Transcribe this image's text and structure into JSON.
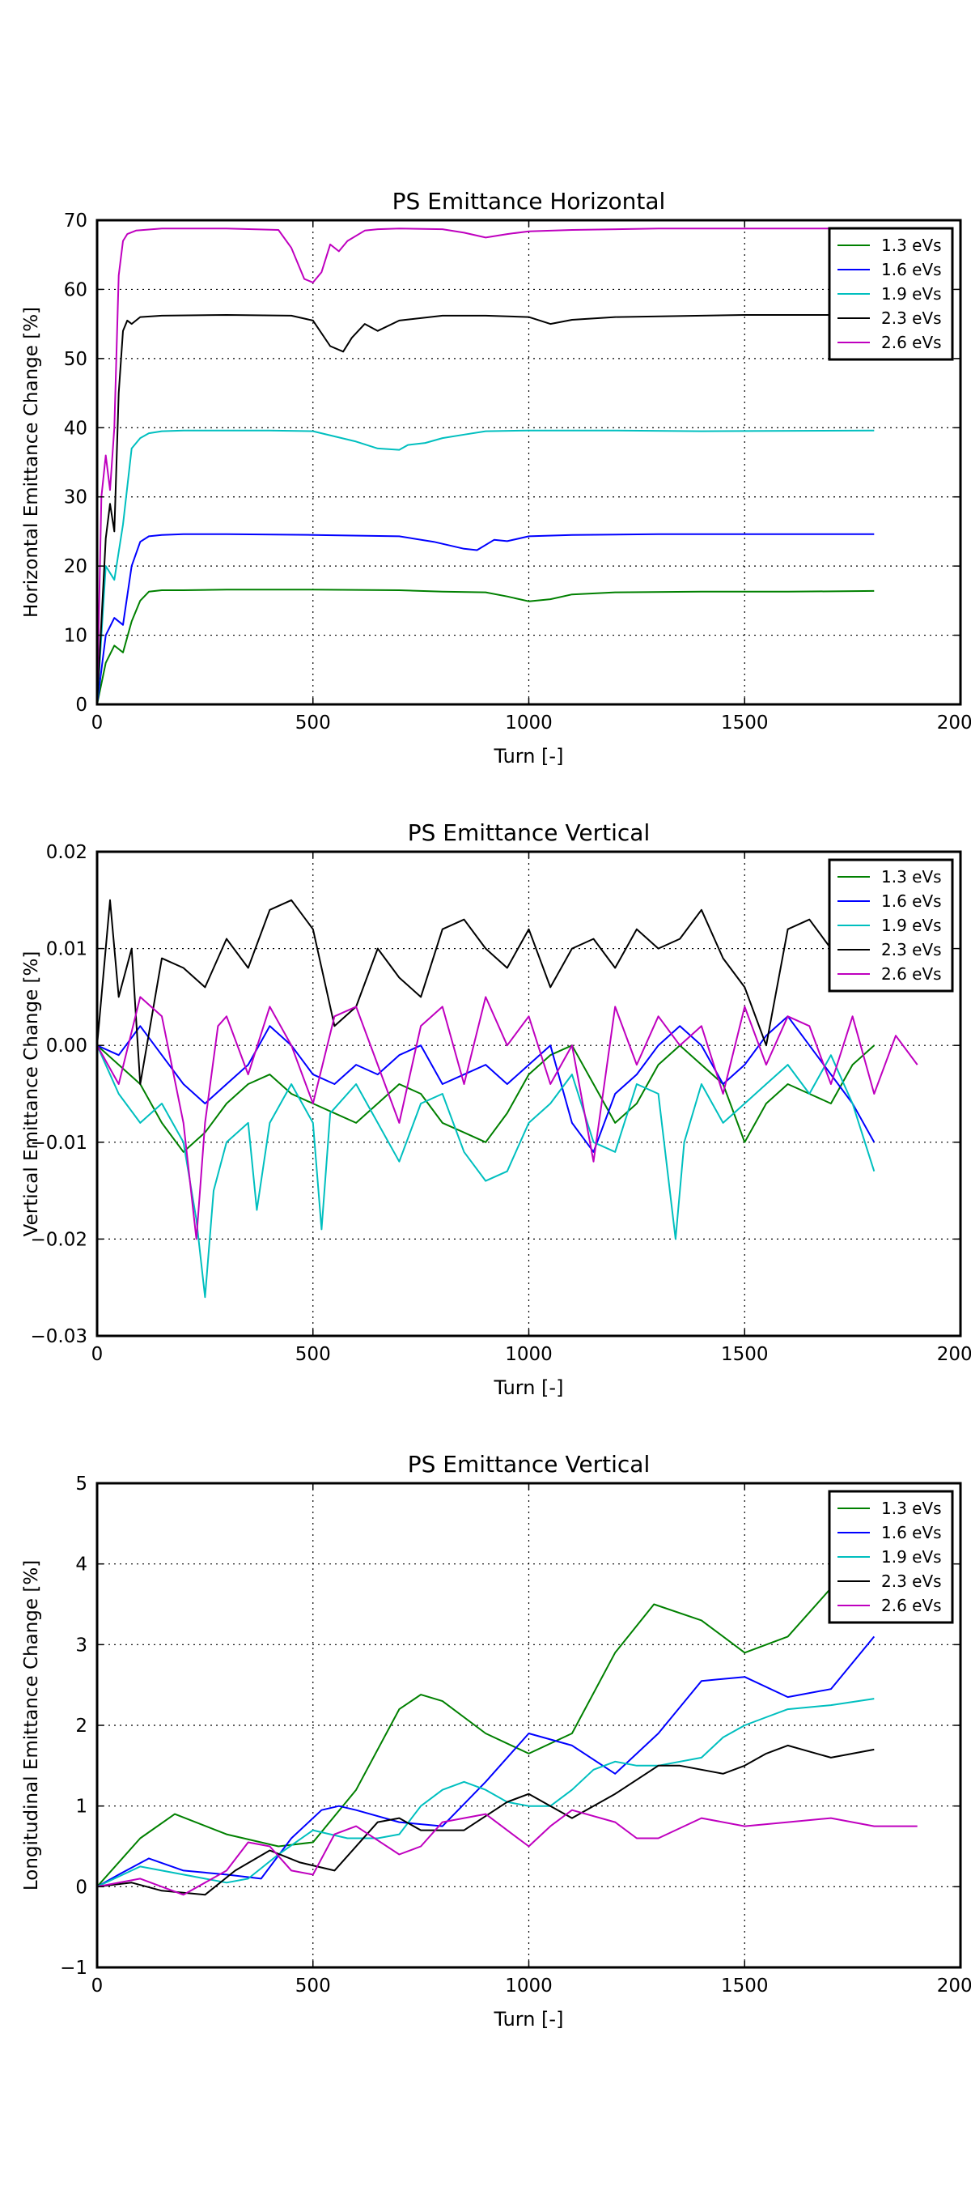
{
  "chart_data": [
    {
      "type": "line",
      "title": "PS Emittance Horizontal",
      "xlabel": "Turn [-]",
      "ylabel": "Horizontal Emittance Change [%]",
      "xlim": [
        0,
        2000
      ],
      "ylim": [
        0,
        70
      ],
      "xticks": [
        0,
        500,
        1000,
        1500,
        2000
      ],
      "yticks": [
        0,
        10,
        20,
        30,
        40,
        50,
        60,
        70
      ],
      "ytick_labels": [
        "0",
        "10",
        "20",
        "30",
        "40",
        "50",
        "60",
        "70"
      ],
      "grid": true,
      "legend": "top-right",
      "series": [
        {
          "name": "1.3 eVs",
          "color": "#008000",
          "x": [
            0,
            20,
            40,
            60,
            80,
            100,
            120,
            150,
            200,
            300,
            500,
            700,
            800,
            900,
            950,
            1000,
            1050,
            1100,
            1200,
            1400,
            1600,
            1800
          ],
          "y": [
            0,
            6,
            8.5,
            7.5,
            12,
            15,
            16.3,
            16.5,
            16.5,
            16.6,
            16.6,
            16.5,
            16.3,
            16.2,
            15.6,
            14.9,
            15.2,
            15.9,
            16.2,
            16.3,
            16.3,
            16.4
          ]
        },
        {
          "name": "1.6 eVs",
          "color": "#0000ff",
          "x": [
            0,
            20,
            40,
            60,
            80,
            100,
            120,
            150,
            200,
            300,
            500,
            700,
            780,
            850,
            880,
            920,
            950,
            1000,
            1100,
            1300,
            1500,
            1800
          ],
          "y": [
            0,
            10,
            12.5,
            11.5,
            20,
            23.5,
            24.3,
            24.5,
            24.6,
            24.6,
            24.5,
            24.3,
            23.5,
            22.5,
            22.3,
            23.8,
            23.6,
            24.3,
            24.5,
            24.6,
            24.6,
            24.6
          ]
        },
        {
          "name": "1.9 eVs",
          "color": "#00bfbf",
          "x": [
            0,
            20,
            40,
            60,
            80,
            100,
            120,
            150,
            200,
            400,
            500,
            600,
            650,
            700,
            720,
            760,
            800,
            850,
            900,
            1000,
            1200,
            1400,
            1800
          ],
          "y": [
            0,
            20,
            18,
            26,
            37,
            38.5,
            39.2,
            39.5,
            39.6,
            39.6,
            39.5,
            38,
            37,
            36.8,
            37.5,
            37.8,
            38.5,
            39,
            39.5,
            39.6,
            39.6,
            39.5,
            39.6
          ]
        },
        {
          "name": "2.3 eVs",
          "color": "#000000",
          "x": [
            0,
            20,
            30,
            40,
            50,
            60,
            70,
            80,
            100,
            150,
            300,
            450,
            500,
            540,
            570,
            590,
            620,
            650,
            700,
            800,
            900,
            1000,
            1050,
            1100,
            1200,
            1500,
            1800
          ],
          "y": [
            0,
            24,
            29,
            25,
            45,
            54,
            55.5,
            55,
            56,
            56.2,
            56.3,
            56.2,
            55.5,
            51.8,
            51,
            53,
            55,
            54,
            55.5,
            56.2,
            56.2,
            56,
            55,
            55.6,
            56,
            56.3,
            56.3
          ]
        },
        {
          "name": "2.6 eVs",
          "color": "#bf00bf",
          "x": [
            0,
            10,
            20,
            30,
            40,
            50,
            60,
            70,
            90,
            150,
            300,
            420,
            450,
            480,
            500,
            520,
            540,
            560,
            580,
            620,
            650,
            700,
            800,
            850,
            900,
            950,
            1000,
            1100,
            1300,
            1500,
            1800
          ],
          "y": [
            0,
            30,
            36,
            31,
            40,
            62,
            67,
            68,
            68.5,
            68.8,
            68.8,
            68.6,
            66,
            61.5,
            61,
            62.5,
            66.5,
            65.5,
            67,
            68.5,
            68.7,
            68.8,
            68.7,
            68.2,
            67.5,
            68,
            68.4,
            68.6,
            68.8,
            68.8,
            68.8
          ]
        }
      ]
    },
    {
      "type": "line",
      "title": "PS Emittance Vertical",
      "xlabel": "Turn [-]",
      "ylabel": "Vertical Emittance Change [%]",
      "xlim": [
        0,
        2000
      ],
      "ylim": [
        -0.03,
        0.02
      ],
      "xticks": [
        0,
        500,
        1000,
        1500,
        2000
      ],
      "yticks": [
        -0.03,
        -0.02,
        -0.01,
        0.0,
        0.01,
        0.02
      ],
      "ytick_labels": [
        "−0.03",
        "−0.02",
        "−0.01",
        "0.00",
        "0.01",
        "0.02"
      ],
      "grid": true,
      "legend": "top-right",
      "series": [
        {
          "name": "1.3 eVs",
          "color": "#008000",
          "x": [
            0,
            50,
            100,
            150,
            200,
            250,
            300,
            350,
            400,
            450,
            500,
            550,
            600,
            650,
            700,
            750,
            800,
            850,
            900,
            950,
            1000,
            1050,
            1100,
            1150,
            1200,
            1250,
            1300,
            1350,
            1400,
            1450,
            1500,
            1550,
            1600,
            1650,
            1700,
            1750,
            1800
          ],
          "y": [
            0,
            -0.002,
            -0.004,
            -0.008,
            -0.011,
            -0.009,
            -0.006,
            -0.004,
            -0.003,
            -0.005,
            -0.006,
            -0.007,
            -0.008,
            -0.006,
            -0.004,
            -0.005,
            -0.008,
            -0.009,
            -0.01,
            -0.007,
            -0.003,
            -0.001,
            0.0,
            -0.004,
            -0.008,
            -0.006,
            -0.002,
            0.0,
            -0.002,
            -0.004,
            -0.01,
            -0.006,
            -0.004,
            -0.005,
            -0.006,
            -0.002,
            0.0
          ]
        },
        {
          "name": "1.6 eVs",
          "color": "#0000ff",
          "x": [
            0,
            50,
            100,
            150,
            200,
            250,
            300,
            350,
            400,
            450,
            500,
            550,
            600,
            650,
            700,
            750,
            800,
            850,
            900,
            950,
            1000,
            1050,
            1100,
            1150,
            1200,
            1250,
            1300,
            1350,
            1400,
            1450,
            1500,
            1550,
            1600,
            1650,
            1700,
            1750,
            1800
          ],
          "y": [
            0,
            -0.001,
            0.002,
            -0.001,
            -0.004,
            -0.006,
            -0.004,
            -0.002,
            0.002,
            0.0,
            -0.003,
            -0.004,
            -0.002,
            -0.003,
            -0.001,
            0.0,
            -0.004,
            -0.003,
            -0.002,
            -0.004,
            -0.002,
            0.0,
            -0.008,
            -0.011,
            -0.005,
            -0.003,
            0.0,
            0.002,
            0.0,
            -0.004,
            -0.002,
            0.001,
            0.003,
            0.0,
            -0.003,
            -0.006,
            -0.01
          ]
        },
        {
          "name": "1.9 eVs",
          "color": "#00bfbf",
          "x": [
            0,
            50,
            100,
            150,
            200,
            230,
            250,
            270,
            300,
            350,
            370,
            400,
            450,
            500,
            520,
            540,
            600,
            650,
            700,
            750,
            800,
            850,
            900,
            950,
            1000,
            1050,
            1100,
            1150,
            1200,
            1250,
            1300,
            1340,
            1360,
            1400,
            1450,
            1500,
            1550,
            1600,
            1650,
            1700,
            1750,
            1800
          ],
          "y": [
            0,
            -0.005,
            -0.008,
            -0.006,
            -0.01,
            -0.018,
            -0.026,
            -0.015,
            -0.01,
            -0.008,
            -0.017,
            -0.008,
            -0.004,
            -0.008,
            -0.019,
            -0.007,
            -0.004,
            -0.008,
            -0.012,
            -0.006,
            -0.005,
            -0.011,
            -0.014,
            -0.013,
            -0.008,
            -0.006,
            -0.003,
            -0.01,
            -0.011,
            -0.004,
            -0.005,
            -0.02,
            -0.01,
            -0.004,
            -0.008,
            -0.006,
            -0.004,
            -0.002,
            -0.005,
            -0.001,
            -0.006,
            -0.013
          ]
        },
        {
          "name": "2.3 eVs",
          "color": "#000000",
          "x": [
            0,
            30,
            50,
            80,
            100,
            150,
            200,
            250,
            300,
            350,
            400,
            450,
            500,
            550,
            600,
            650,
            700,
            750,
            800,
            850,
            900,
            950,
            1000,
            1050,
            1100,
            1150,
            1200,
            1250,
            1300,
            1350,
            1400,
            1450,
            1500,
            1550,
            1600,
            1650,
            1700,
            1750,
            1800
          ],
          "y": [
            0,
            0.015,
            0.005,
            0.01,
            -0.004,
            0.009,
            0.008,
            0.006,
            0.011,
            0.008,
            0.014,
            0.015,
            0.012,
            0.002,
            0.004,
            0.01,
            0.007,
            0.005,
            0.012,
            0.013,
            0.01,
            0.008,
            0.012,
            0.006,
            0.01,
            0.011,
            0.008,
            0.012,
            0.01,
            0.011,
            0.014,
            0.009,
            0.006,
            0.0,
            0.012,
            0.013,
            0.01,
            0.006,
            0.009
          ]
        },
        {
          "name": "2.6 eVs",
          "color": "#bf00bf",
          "x": [
            0,
            50,
            100,
            150,
            200,
            230,
            250,
            280,
            300,
            350,
            400,
            450,
            500,
            550,
            600,
            650,
            700,
            750,
            800,
            850,
            900,
            950,
            1000,
            1050,
            1100,
            1150,
            1200,
            1250,
            1300,
            1350,
            1400,
            1450,
            1500,
            1550,
            1600,
            1650,
            1700,
            1750,
            1800,
            1850,
            1900
          ],
          "y": [
            0,
            -0.004,
            0.005,
            0.003,
            -0.008,
            -0.02,
            -0.008,
            0.002,
            0.003,
            -0.003,
            0.004,
            0.0,
            -0.006,
            0.003,
            0.004,
            -0.002,
            -0.008,
            0.002,
            0.004,
            -0.004,
            0.005,
            0.0,
            0.003,
            -0.004,
            0.0,
            -0.012,
            0.004,
            -0.002,
            0.003,
            0.0,
            0.002,
            -0.005,
            0.004,
            -0.002,
            0.003,
            0.002,
            -0.004,
            0.003,
            -0.005,
            0.001,
            -0.002
          ]
        }
      ]
    },
    {
      "type": "line",
      "title": "PS Emittance Vertical",
      "xlabel": "Turn [-]",
      "ylabel": "Longitudinal Emittance Change [%]",
      "xlim": [
        0,
        2000
      ],
      "ylim": [
        -1,
        5
      ],
      "xticks": [
        0,
        500,
        1000,
        1500,
        2000
      ],
      "yticks": [
        -1,
        0,
        1,
        2,
        3,
        4,
        5
      ],
      "ytick_labels": [
        "−1",
        "0",
        "1",
        "2",
        "3",
        "4",
        "5"
      ],
      "grid": true,
      "legend": "top-right",
      "series": [
        {
          "name": "1.3 eVs",
          "color": "#008000",
          "x": [
            0,
            100,
            180,
            300,
            420,
            500,
            600,
            700,
            750,
            800,
            900,
            1000,
            1100,
            1200,
            1290,
            1400,
            1500,
            1600,
            1700,
            1800
          ],
          "y": [
            0,
            0.6,
            0.9,
            0.65,
            0.5,
            0.55,
            1.2,
            2.2,
            2.38,
            2.3,
            1.9,
            1.65,
            1.9,
            2.9,
            3.5,
            3.3,
            2.9,
            3.1,
            3.7,
            4.2
          ]
        },
        {
          "name": "1.6 eVs",
          "color": "#0000ff",
          "x": [
            0,
            50,
            120,
            200,
            300,
            380,
            450,
            520,
            560,
            600,
            700,
            800,
            900,
            1000,
            1100,
            1200,
            1300,
            1400,
            1500,
            1600,
            1700,
            1800
          ],
          "y": [
            0,
            0.15,
            0.35,
            0.2,
            0.15,
            0.1,
            0.6,
            0.95,
            1.0,
            0.95,
            0.8,
            0.75,
            1.3,
            1.9,
            1.75,
            1.4,
            1.9,
            2.55,
            2.6,
            2.35,
            2.45,
            3.1
          ]
        },
        {
          "name": "1.9 eVs",
          "color": "#00bfbf",
          "x": [
            0,
            100,
            200,
            250,
            300,
            350,
            420,
            500,
            580,
            650,
            700,
            750,
            800,
            850,
            900,
            950,
            1000,
            1050,
            1100,
            1150,
            1200,
            1250,
            1300,
            1400,
            1450,
            1500,
            1550,
            1600,
            1700,
            1800
          ],
          "y": [
            0,
            0.25,
            0.15,
            0.1,
            0.05,
            0.1,
            0.4,
            0.7,
            0.6,
            0.6,
            0.65,
            1.0,
            1.2,
            1.3,
            1.2,
            1.05,
            1.0,
            1.0,
            1.2,
            1.45,
            1.55,
            1.5,
            1.5,
            1.6,
            1.85,
            2.0,
            2.1,
            2.2,
            2.25,
            2.33
          ]
        },
        {
          "name": "2.3 eVs",
          "color": "#000000",
          "x": [
            0,
            80,
            150,
            250,
            320,
            400,
            470,
            550,
            650,
            700,
            750,
            850,
            950,
            1000,
            1050,
            1100,
            1200,
            1300,
            1350,
            1450,
            1500,
            1550,
            1600,
            1700,
            1800
          ],
          "y": [
            0,
            0.05,
            -0.05,
            -0.1,
            0.2,
            0.45,
            0.3,
            0.2,
            0.8,
            0.85,
            0.7,
            0.7,
            1.05,
            1.15,
            1.0,
            0.85,
            1.15,
            1.5,
            1.5,
            1.4,
            1.5,
            1.65,
            1.75,
            1.6,
            1.7
          ]
        },
        {
          "name": "2.6 eVs",
          "color": "#bf00bf",
          "x": [
            0,
            100,
            200,
            300,
            350,
            400,
            450,
            500,
            550,
            600,
            700,
            750,
            800,
            900,
            950,
            1000,
            1050,
            1100,
            1200,
            1250,
            1300,
            1400,
            1500,
            1600,
            1700,
            1800,
            1900
          ],
          "y": [
            0,
            0.1,
            -0.1,
            0.2,
            0.55,
            0.5,
            0.2,
            0.15,
            0.65,
            0.75,
            0.4,
            0.5,
            0.8,
            0.9,
            0.7,
            0.5,
            0.75,
            0.95,
            0.8,
            0.6,
            0.6,
            0.85,
            0.75,
            0.8,
            0.85,
            0.75,
            0.75
          ]
        }
      ]
    }
  ]
}
